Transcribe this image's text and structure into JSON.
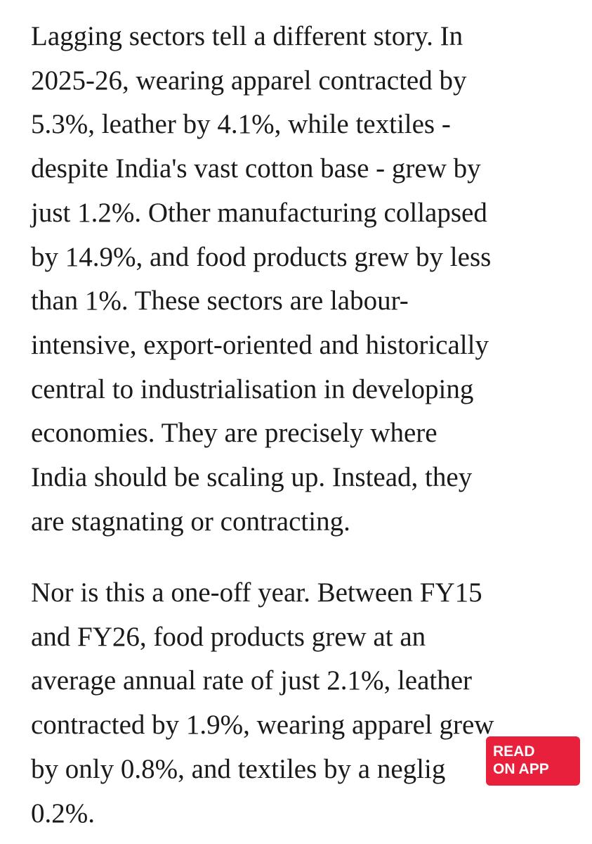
{
  "article": {
    "paragraphs": [
      {
        "lines": [
          "Lagging sectors tell a different story. In",
          "2025-26, wearing apparel contracted by",
          "5.3%, leather by 4.1%, while textiles -",
          "despite India's vast cotton base - grew by",
          "just 1.2%. Other manufacturing collapsed",
          "by 14.9%, and food products grew by less",
          "than 1%. These sectors are labour-",
          "intensive, export-oriented and historically",
          "central to industrialisation in developing",
          "economies. They are precisely where",
          "India should be scaling up. Instead, they",
          "are stagnating or contracting."
        ]
      },
      {
        "lines": [
          "Nor is this a one-off year. Between FY15",
          "and FY26, food products grew at an",
          "average annual rate of just 2.1%, leather",
          "contracted by 1.9%, wearing apparel grew",
          "by only 0.8%, and textiles by a neglig",
          "0.2%."
        ]
      }
    ]
  },
  "button": {
    "line1": "READ",
    "line2": "ON APP"
  }
}
